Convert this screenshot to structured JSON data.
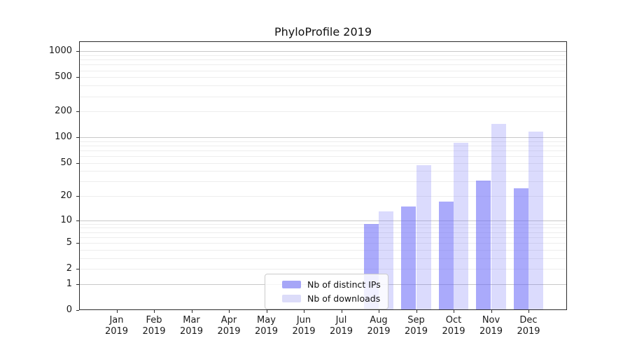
{
  "chart_data": {
    "type": "bar",
    "title": "PhyloProfile 2019",
    "year": "2019",
    "categories": [
      "Jan",
      "Feb",
      "Mar",
      "Apr",
      "May",
      "Jun",
      "Jul",
      "Aug",
      "Sep",
      "Oct",
      "Nov",
      "Dec"
    ],
    "series": [
      {
        "name": "Nb of distinct IPs",
        "swatch_color": "#a6a6f7",
        "fill_rgba": "rgba(104,104,248,0.56)",
        "values": [
          0,
          0,
          0,
          0,
          0,
          0,
          0,
          9,
          15,
          17,
          31,
          25
        ]
      },
      {
        "name": "Nb of downloads",
        "swatch_color": "#dcdcf9",
        "fill_rgba": "rgba(104,104,248,0.24)",
        "values": [
          0,
          0,
          0,
          0,
          0,
          0,
          0,
          13,
          47,
          86,
          143,
          116
        ]
      }
    ],
    "xlabel": "",
    "ylabel": "",
    "y_scale": "symlog (log1p)",
    "y_ticks": [
      0,
      1,
      2,
      5,
      10,
      20,
      50,
      100,
      200,
      500,
      1000
    ],
    "ylim": [
      0,
      1300
    ],
    "grid": {
      "orientation": "horizontal",
      "major_values": [
        1,
        10,
        100,
        1000
      ],
      "minor_values": [
        2,
        3,
        4,
        5,
        6,
        7,
        8,
        9,
        20,
        30,
        40,
        50,
        60,
        70,
        80,
        90,
        200,
        300,
        400,
        500,
        600,
        700,
        800,
        900
      ]
    },
    "legend_position": "inside plot, lower center-left",
    "bar_layout": "grouped pair per month, distinct-IPs bar left of tick, downloads bar right of tick"
  }
}
